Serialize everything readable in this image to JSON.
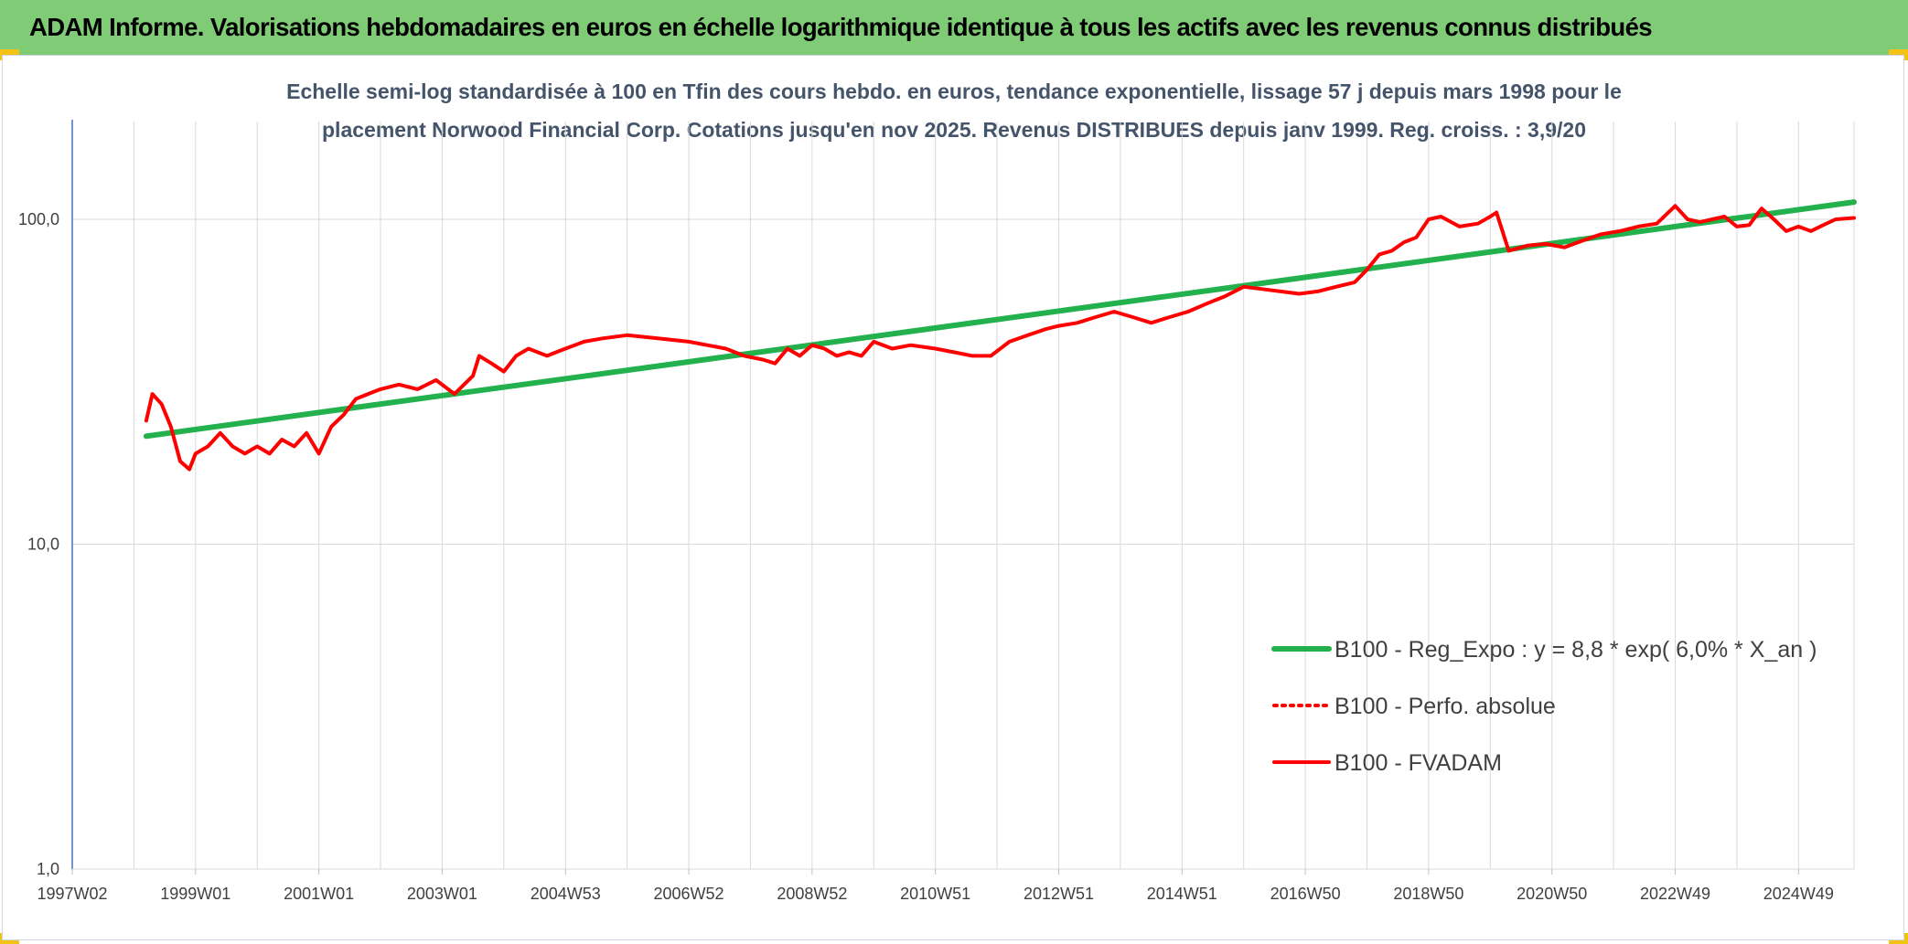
{
  "header": {
    "title": "ADAM Informe. Valorisations hebdomadaires en euros en échelle logarithmique identique à tous les actifs avec les revenus connus distribués",
    "background": "#7fcb76",
    "corner_color": "#f2c316"
  },
  "chart_data": {
    "type": "line",
    "title_line1": "Echelle semi-log standardisée à 100 en Tfin des cours hebdo. en euros, tendance exponentielle, lissage 57 j depuis mars 1998 pour le",
    "title_line2": "placement Norwood Financial Corp. Cotations jusqu'en nov 2025. Revenus DISTRIBUES depuis janv 1999. Reg. croiss. : 3,9/20",
    "x_scale": "time",
    "xlim": [
      1997.0,
      2025.9
    ],
    "x_tick_labels": [
      "1997W02",
      "1999W01",
      "2001W01",
      "2003W01",
      "2004W53",
      "2006W52",
      "2008W52",
      "2010W51",
      "2012W51",
      "2014W51",
      "2016W50",
      "2018W50",
      "2020W50",
      "2022W49",
      "2024W49"
    ],
    "x_tick_positions": [
      1997.0,
      1999.0,
      2001.0,
      2003.0,
      2005.0,
      2007.0,
      2009.0,
      2011.0,
      2013.0,
      2015.0,
      2017.0,
      2019.0,
      2021.0,
      2023.0,
      2025.0
    ],
    "y_scale": "log",
    "ylim": [
      1,
      200
    ],
    "y_tick_values": [
      1,
      10,
      100
    ],
    "y_tick_labels": [
      "1,0",
      "10,0",
      "100,0"
    ],
    "grid": true,
    "legend_position": "lower-right",
    "series": [
      {
        "name": "B100 - Reg_Expo : y = 8,8 * exp( 6,0% *  X_an )",
        "color": "#22b14c",
        "style": "solid",
        "x": [
          1998.2,
          2025.9
        ],
        "y": [
          21.5,
          113
        ]
      },
      {
        "name": "B100 - Perfo. absolue",
        "color": "#ff0000",
        "style": "dotted",
        "x": [],
        "y": []
      },
      {
        "name": "B100 - FVADAM",
        "color": "#ff0000",
        "style": "solid",
        "x": [
          1998.2,
          1998.3,
          1998.45,
          1998.6,
          1998.75,
          1998.9,
          1999.0,
          1999.2,
          1999.4,
          1999.6,
          1999.8,
          2000.0,
          2000.2,
          2000.4,
          2000.6,
          2000.8,
          2001.0,
          2001.2,
          2001.4,
          2001.6,
          2001.8,
          2002.0,
          2002.3,
          2002.6,
          2002.9,
          2003.2,
          2003.5,
          2003.6,
          2003.8,
          2004.0,
          2004.2,
          2004.4,
          2004.7,
          2005.0,
          2005.3,
          2005.6,
          2006.0,
          2006.5,
          2007.0,
          2007.3,
          2007.6,
          2007.9,
          2008.2,
          2008.4,
          2008.6,
          2008.8,
          2009.0,
          2009.2,
          2009.4,
          2009.6,
          2009.8,
          2010.0,
          2010.3,
          2010.6,
          2011.0,
          2011.3,
          2011.6,
          2011.9,
          2012.2,
          2012.5,
          2012.8,
          2013.0,
          2013.3,
          2013.6,
          2013.9,
          2014.2,
          2014.5,
          2014.8,
          2015.1,
          2015.4,
          2015.7,
          2016.0,
          2016.3,
          2016.6,
          2016.9,
          2017.2,
          2017.5,
          2017.8,
          2018.0,
          2018.2,
          2018.4,
          2018.6,
          2018.8,
          2019.0,
          2019.2,
          2019.5,
          2019.8,
          2020.0,
          2020.1,
          2020.3,
          2020.6,
          2020.9,
          2021.2,
          2021.5,
          2021.8,
          2022.1,
          2022.4,
          2022.7,
          2023.0,
          2023.2,
          2023.4,
          2023.6,
          2023.8,
          2024.0,
          2024.2,
          2024.4,
          2024.6,
          2024.8,
          2025.0,
          2025.2,
          2025.4,
          2025.6,
          2025.9
        ],
        "y": [
          24,
          29,
          27,
          23,
          18,
          17,
          19,
          20,
          22,
          20,
          19,
          20,
          19,
          21,
          20,
          22,
          19,
          23,
          25,
          28,
          29,
          30,
          31,
          30,
          32,
          29,
          33,
          38,
          36,
          34,
          38,
          40,
          38,
          40,
          42,
          43,
          44,
          43,
          42,
          41,
          40,
          38,
          37,
          36,
          40,
          38,
          41,
          40,
          38,
          39,
          38,
          42,
          40,
          41,
          40,
          39,
          38,
          38,
          42,
          44,
          46,
          47,
          48,
          50,
          52,
          50,
          48,
          50,
          52,
          55,
          58,
          62,
          61,
          60,
          59,
          60,
          62,
          64,
          70,
          78,
          80,
          85,
          88,
          100,
          102,
          95,
          97,
          102,
          105,
          80,
          83,
          84,
          82,
          86,
          90,
          92,
          95,
          97,
          110,
          100,
          98,
          100,
          102,
          95,
          96,
          108,
          100,
          92,
          95,
          92,
          96,
          100,
          101
        ]
      }
    ]
  }
}
